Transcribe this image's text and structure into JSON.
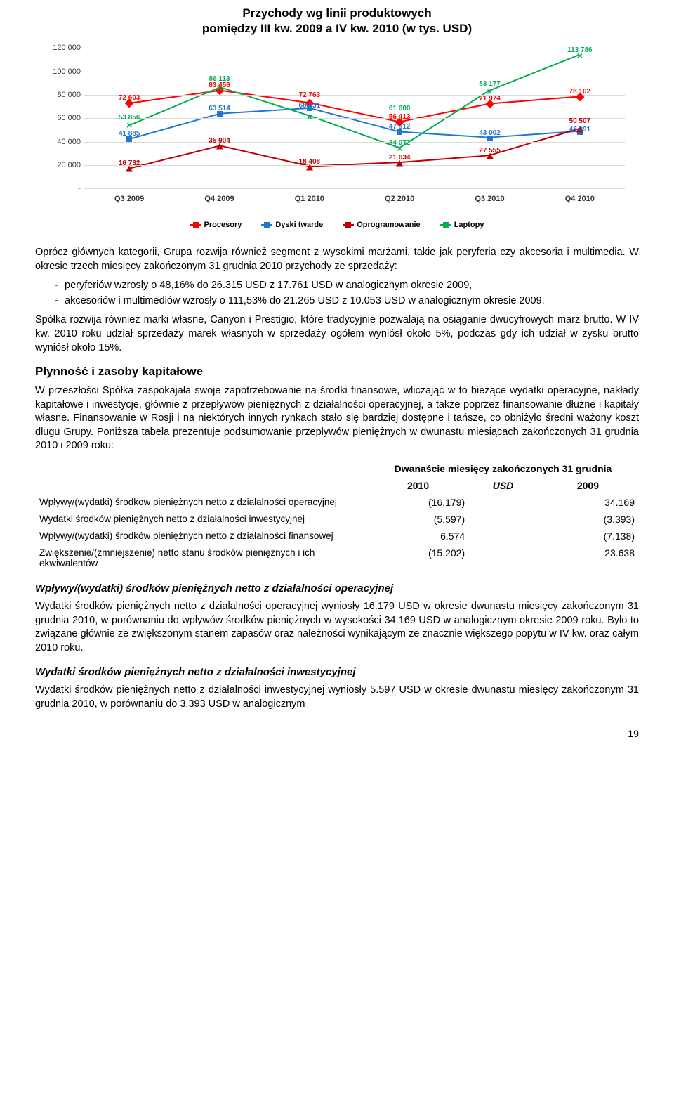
{
  "chart": {
    "title_line1": "Przychody wg linii produktowych",
    "title_line2": "pomiędzy III kw. 2009 a IV kw. 2010 (w tys. USD)",
    "categories": [
      "Q3 2009",
      "Q4 2009",
      "Q1 2010",
      "Q2 2010",
      "Q3 2010",
      "Q4 2010"
    ],
    "y_ticks": [
      0,
      20000,
      40000,
      60000,
      80000,
      100000,
      120000
    ],
    "y_tick_labels": [
      "-",
      "20 000",
      "40 000",
      "60 000",
      "80 000",
      "100 000",
      "120 000"
    ],
    "y_max": 120000,
    "series": [
      {
        "name": "Procesory",
        "color": "#ff0000",
        "marker": "diamond",
        "values": [
          72603,
          83456,
          72763,
          56413,
          71974,
          78102
        ]
      },
      {
        "name": "Dyski twarde",
        "color": "#1f77d4",
        "marker": "square",
        "values": [
          41885,
          63514,
          68231,
          47912,
          43002,
          48391
        ]
      },
      {
        "name": "Oprogramowanie",
        "color": "#c00000",
        "marker": "triangle",
        "values": [
          16732,
          35904,
          18408,
          21634,
          27555,
          50507
        ]
      },
      {
        "name": "Laptopy",
        "color": "#00b050",
        "marker": "cross",
        "values": [
          53856,
          86113,
          61600,
          34072,
          83177,
          113786
        ]
      }
    ],
    "data_labels": [
      {
        "text": "72 603",
        "x_idx": 0,
        "y": 72603,
        "color": "#ff0000"
      },
      {
        "text": "53 856",
        "x_idx": 0,
        "y": 56000,
        "color": "#00b050"
      },
      {
        "text": "41 885",
        "x_idx": 0,
        "y": 41885,
        "color": "#1f77d4"
      },
      {
        "text": "16 732",
        "x_idx": 0,
        "y": 16732,
        "color": "#c00000"
      },
      {
        "text": "86 113",
        "x_idx": 1,
        "y": 89000,
        "color": "#00b050"
      },
      {
        "text": "83 456",
        "x_idx": 1,
        "y": 83456,
        "color": "#ff0000"
      },
      {
        "text": "63 514",
        "x_idx": 1,
        "y": 63514,
        "color": "#1f77d4"
      },
      {
        "text": "35 904",
        "x_idx": 1,
        "y": 35904,
        "color": "#c00000"
      },
      {
        "text": "72 763",
        "x_idx": 2,
        "y": 75000,
        "color": "#ff0000"
      },
      {
        "text": "68 231",
        "x_idx": 2,
        "y": 66000,
        "color": "#1f77d4"
      },
      {
        "text": "18 408",
        "x_idx": 2,
        "y": 18408,
        "color": "#c00000"
      },
      {
        "text": "61 600",
        "x_idx": 3,
        "y": 64000,
        "color": "#00b050"
      },
      {
        "text": "56 413",
        "x_idx": 3,
        "y": 56413,
        "color": "#ff0000"
      },
      {
        "text": "47 912",
        "x_idx": 3,
        "y": 47912,
        "color": "#1f77d4"
      },
      {
        "text": "34 072",
        "x_idx": 3,
        "y": 34072,
        "color": "#00b050"
      },
      {
        "text": "21 634",
        "x_idx": 3,
        "y": 21634,
        "color": "#c00000"
      },
      {
        "text": "83 177",
        "x_idx": 4,
        "y": 85000,
        "color": "#00b050"
      },
      {
        "text": "71 974",
        "x_idx": 4,
        "y": 71974,
        "color": "#ff0000"
      },
      {
        "text": "43 002",
        "x_idx": 4,
        "y": 43002,
        "color": "#1f77d4"
      },
      {
        "text": "27 555",
        "x_idx": 4,
        "y": 27555,
        "color": "#c00000"
      },
      {
        "text": "113 786",
        "x_idx": 5,
        "y": 113786,
        "color": "#00b050"
      },
      {
        "text": "78 102",
        "x_idx": 5,
        "y": 78102,
        "color": "#ff0000"
      },
      {
        "text": "50 507",
        "x_idx": 5,
        "y": 53000,
        "color": "#c00000"
      },
      {
        "text": "48 391",
        "x_idx": 5,
        "y": 46000,
        "color": "#1f77d4"
      }
    ],
    "legend": [
      {
        "label": "Procesory",
        "color": "#ff0000"
      },
      {
        "label": "Dyski twarde",
        "color": "#1f77d4"
      },
      {
        "label": "Oprogramowanie",
        "color": "#c00000"
      },
      {
        "label": "Laptopy",
        "color": "#00b050"
      }
    ]
  },
  "para1": "Oprócz głównych kategorii, Grupa rozwija również segment z wysokimi marżami, takie jak peryferia czy akcesoria i multimedia. W okresie trzech miesięcy zakończonym 31 grudnia 2010 przychody ze sprzedaży:",
  "bullet1": "peryferiów wzrosły o 48,16% do 26.315 USD z 17.761 USD w analogicznym okresie 2009,",
  "bullet2": "akcesoriów i multimediów wzrosły o 111,53% do 21.265 USD z 10.053 USD w analogicznym okresie 2009.",
  "para2": "Spółka rozwija również marki własne, Canyon i Prestigio, które tradycyjnie pozwalają na osiąganie dwucyfrowych marż brutto. W IV kw. 2010 roku udział sprzedaży marek własnych w sprzedaży ogółem wyniósł około 5%, podczas gdy ich udział w zysku brutto wyniósł około 15%.",
  "sec1_title": "Płynność i zasoby kapitałowe",
  "sec1_para": "W przeszłości Spółka zaspokajała swoje zapotrzebowanie na środki finansowe, wliczając w to bieżące wydatki operacyjne, nakłady kapitałowe i inwestycje, głównie z przepływów pieniężnych z działalności operacyjnej, a także poprzez finansowanie dłużne i kapitały własne. Finansowanie w Rosji i na niektórych innych rynkach stało się bardziej dostępne i tańsze, co obniżyło średni ważony koszt długu Grupy. Poniższa tabela prezentuje podsumowanie przepływów pieniężnych w dwunastu miesiącach zakończonych 31 grudnia 2010 i 2009 roku:",
  "table": {
    "header_top": "Dwanaście miesięcy zakończonych 31 grudnia",
    "col_2010": "2010",
    "col_middle": "USD",
    "col_2009": "2009",
    "rows": [
      {
        "label": "Wpływy/(wydatki) środkow pieniężnych netto z działalności operacyjnej",
        "v2010": "(16.179)",
        "v2009": "34.169"
      },
      {
        "label": "Wydatki środków pieniężnych netto z działalności inwestycyjnej",
        "v2010": "(5.597)",
        "v2009": "(3.393)"
      },
      {
        "label": "Wpływy/(wydatki) środków pieniężnych netto z działalności finansowej",
        "v2010": "6.574",
        "v2009": "(7.138)"
      },
      {
        "label": "Zwiększenie/(zmniejszenie) netto stanu środków pieniężnych i ich ekwiwalentów",
        "v2010": "(15.202)",
        "v2009": "23.638"
      }
    ]
  },
  "sub1_title": "Wpływy/(wydatki) środków pieniężnych netto z działalności operacyjnej",
  "sub1_para": "Wydatki środków pieniężnych netto z dzialalności operacyjnej wyniosły 16.179 USD w okresie dwunastu miesięcy zakończonym 31 grudnia 2010, w porównaniu do wpływów środków pieniężnych w wysokości 34.169 USD w analogicznym okresie 2009 roku. Było to związane głównie ze zwiększonym stanem zapasów oraz należności wynikającym ze znacznie większego popytu w IV kw. oraz całym 2010 roku.",
  "sub2_title": "Wydatki środków pieniężnych netto z działalności inwestycyjnej",
  "sub2_para": "Wydatki środków pieniężnych netto z działalności inwestycyjnej wyniosły 5.597 USD w okresie dwunastu miesięcy zakończonym 31 grudnia 2010, w porównaniu do 3.393 USD w analogicznym",
  "page_number": "19"
}
